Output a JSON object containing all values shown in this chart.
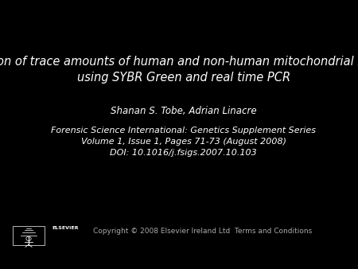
{
  "background_color": "#000000",
  "title_line1": "Quantification of trace amounts of human and non-human mitochondrial DNA (mtDNA)",
  "title_line2": "using SYBR Green and real time PCR",
  "authors": "Shanan S. Tobe, Adrian Linacre",
  "journal_line1": "Forensic Science International: Genetics Supplement Series",
  "journal_line2": "Volume 1, Issue 1, Pages 71-73 (August 2008)",
  "journal_line3": "DOI: 10.1016/j.fsigs.2007.10.103",
  "copyright_text": "Copyright © 2008 Elsevier Ireland Ltd  Terms and Conditions",
  "text_color": "#ffffff",
  "title_fontsize": 10.5,
  "authors_fontsize": 8.5,
  "journal_fontsize": 8.0,
  "copyright_fontsize": 6.5,
  "elsevier_fontsize": 4.5
}
